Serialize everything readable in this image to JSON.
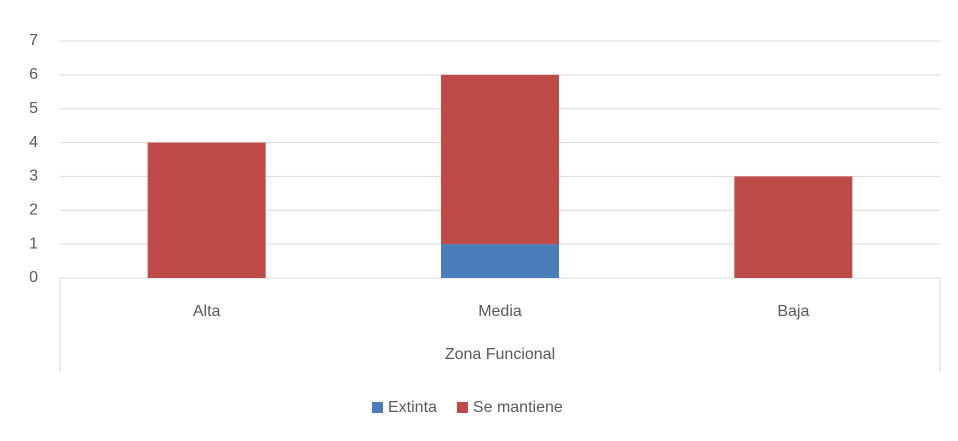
{
  "chart_data": {
    "type": "stacked_bar",
    "x_label": "Zona Funcional",
    "categories": [
      "Alta",
      "Media",
      "Baja"
    ],
    "series": [
      {
        "name": "Extinta",
        "color": "#4a7ebb",
        "values": [
          0,
          1,
          0
        ]
      },
      {
        "name": "Se mantiene",
        "color": "#be4b48",
        "values": [
          4,
          5,
          3
        ]
      }
    ],
    "ylim": [
      0,
      7
    ],
    "yticks": [
      0,
      1,
      2,
      3,
      4,
      5,
      6,
      7
    ],
    "grid": true,
    "legend": "bottom"
  }
}
